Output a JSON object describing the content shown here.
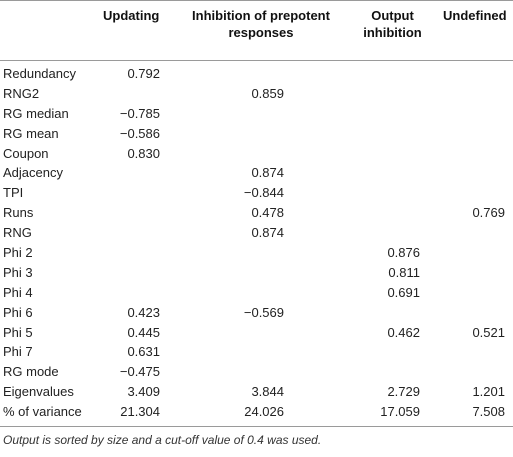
{
  "table": {
    "headers": {
      "col1": "Updating",
      "col2": "Inhibition of prepotent responses",
      "col3": "Output inhibition",
      "col4": "Undefined"
    },
    "rows": [
      {
        "label": "Redundancy",
        "v1": "0.792",
        "v2": "",
        "v3": "",
        "v4": ""
      },
      {
        "label": "RNG2",
        "v1": "",
        "v2": "0.859",
        "v3": "",
        "v4": ""
      },
      {
        "label": "RG median",
        "v1": "−0.785",
        "v2": "",
        "v3": "",
        "v4": ""
      },
      {
        "label": "RG mean",
        "v1": "−0.586",
        "v2": "",
        "v3": "",
        "v4": ""
      },
      {
        "label": "Coupon",
        "v1": "0.830",
        "v2": "",
        "v3": "",
        "v4": ""
      },
      {
        "label": "Adjacency",
        "v1": "",
        "v2": "0.874",
        "v3": "",
        "v4": ""
      },
      {
        "label": "TPI",
        "v1": "",
        "v2": "−0.844",
        "v3": "",
        "v4": ""
      },
      {
        "label": "Runs",
        "v1": "",
        "v2": "0.478",
        "v3": "",
        "v4": "0.769"
      },
      {
        "label": "RNG",
        "v1": "",
        "v2": "0.874",
        "v3": "",
        "v4": ""
      },
      {
        "label": "Phi 2",
        "v1": "",
        "v2": "",
        "v3": "0.876",
        "v4": ""
      },
      {
        "label": "Phi 3",
        "v1": "",
        "v2": "",
        "v3": "0.811",
        "v4": ""
      },
      {
        "label": "Phi 4",
        "v1": "",
        "v2": "",
        "v3": "0.691",
        "v4": ""
      },
      {
        "label": "Phi 6",
        "v1": "0.423",
        "v2": "−0.569",
        "v3": "",
        "v4": ""
      },
      {
        "label": "Phi 5",
        "v1": "0.445",
        "v2": "",
        "v3": "0.462",
        "v4": "0.521"
      },
      {
        "label": "Phi 7",
        "v1": "0.631",
        "v2": "",
        "v3": "",
        "v4": ""
      },
      {
        "label": "RG mode",
        "v1": "−0.475",
        "v2": "",
        "v3": "",
        "v4": ""
      },
      {
        "label": "Eigenvalues",
        "v1": "3.409",
        "v2": "3.844",
        "v3": "2.729",
        "v4": "1.201"
      },
      {
        "label": "% of variance",
        "v1": "21.304",
        "v2": "24.026",
        "v3": "17.059",
        "v4": "7.508"
      }
    ]
  },
  "footnote": "Output is sorted by size and a cut-off value of 0.4 was used."
}
